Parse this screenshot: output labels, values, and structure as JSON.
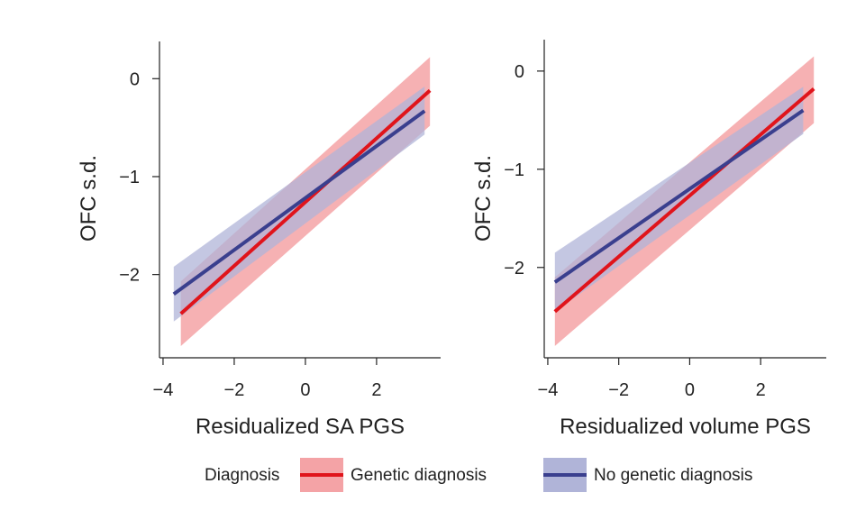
{
  "chart_data": [
    {
      "type": "line",
      "xlabel": "Residualized SA PGS",
      "ylabel": "OFC s.d.",
      "xticks": [
        -4,
        -2,
        0,
        2
      ],
      "yticks": [
        0,
        -1,
        -2
      ],
      "xlim": [
        -4.1,
        3.8
      ],
      "ylim": [
        -2.85,
        0.38
      ],
      "series": [
        {
          "name": "Genetic diagnosis",
          "color": "#e0141b",
          "band_color": "#f4a3a6",
          "x": [
            -3.5,
            3.5
          ],
          "y": [
            -2.4,
            -0.12
          ],
          "lower": [
            -2.73,
            -0.48
          ],
          "upper": [
            -2.07,
            0.22
          ]
        },
        {
          "name": "No genetic diagnosis",
          "color": "#3a3f8e",
          "band_color": "#b0b4d8",
          "x": [
            -3.7,
            3.35
          ],
          "y": [
            -2.2,
            -0.33
          ],
          "lower": [
            -2.48,
            -0.57
          ],
          "upper": [
            -1.92,
            -0.08
          ]
        }
      ]
    },
    {
      "type": "line",
      "xlabel": "Residualized volume PGS",
      "ylabel": "OFC s.d.",
      "xticks": [
        -4,
        -2,
        0,
        2
      ],
      "yticks": [
        0,
        -1,
        -2
      ],
      "xlim": [
        -4.1,
        3.85
      ],
      "ylim": [
        -2.92,
        0.32
      ],
      "series": [
        {
          "name": "Genetic diagnosis",
          "color": "#e0141b",
          "band_color": "#f4a3a6",
          "x": [
            -3.8,
            3.5
          ],
          "y": [
            -2.45,
            -0.18
          ],
          "lower": [
            -2.8,
            -0.53
          ],
          "upper": [
            -2.1,
            0.15
          ]
        },
        {
          "name": "No genetic diagnosis",
          "color": "#3a3f8e",
          "band_color": "#b0b4d8",
          "x": [
            -3.8,
            3.2
          ],
          "y": [
            -2.15,
            -0.4
          ],
          "lower": [
            -2.45,
            -0.64
          ],
          "upper": [
            -1.85,
            -0.16
          ]
        }
      ]
    }
  ],
  "legend": {
    "title": "Diagnosis",
    "items": [
      {
        "label": "Genetic diagnosis",
        "line_color": "#e0141b",
        "box_color": "#f4a3a6"
      },
      {
        "label": "No genetic diagnosis",
        "line_color": "#3a3f8e",
        "box_color": "#b0b4d8"
      }
    ]
  }
}
